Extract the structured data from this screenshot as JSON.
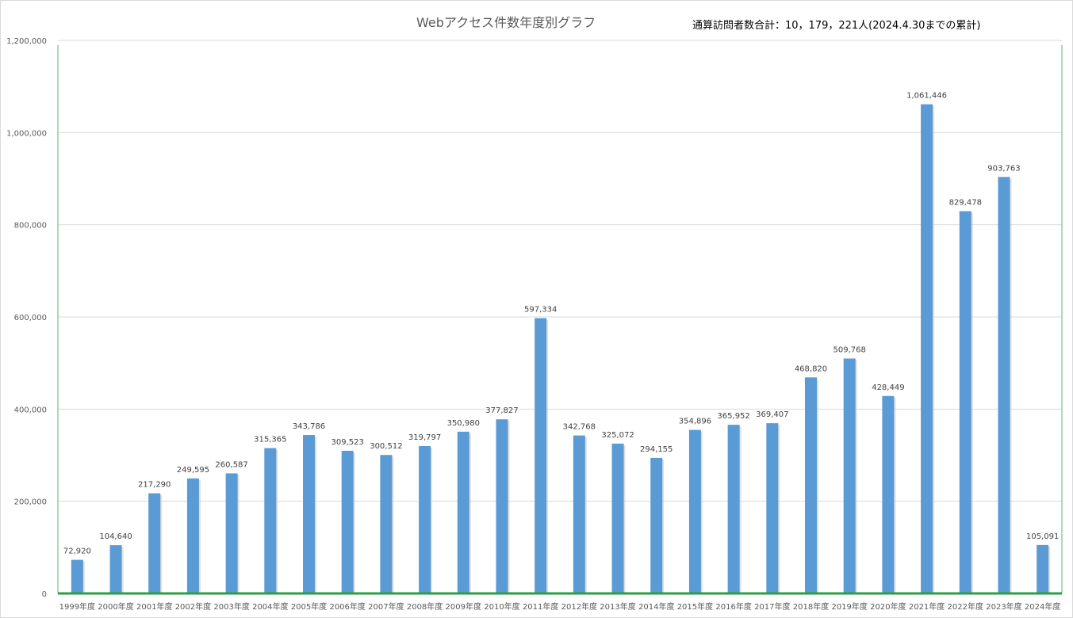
{
  "title": "Webアクセス件数年度別グラフ",
  "subtitle": "通算訪問者数合計：10，179，221人(2024.4.30までの累計)",
  "chart_data": {
    "type": "bar",
    "title": "Webアクセス件数年度別グラフ",
    "xlabel": "",
    "ylabel": "",
    "ylim": [
      0,
      1200000
    ],
    "yticks": [
      0,
      200000,
      400000,
      600000,
      800000,
      1000000,
      1200000
    ],
    "ytick_labels": [
      "0",
      "200,000",
      "400,000",
      "600,000",
      "800,000",
      "1,000,000",
      "1,200,000"
    ],
    "grid": true,
    "legend": "none",
    "bar_color": "#5b9bd5",
    "axis_color": "#2e9e45",
    "categories": [
      "1999年度",
      "2000年度",
      "2001年度",
      "2002年度",
      "2003年度",
      "2004年度",
      "2005年度",
      "2006年度",
      "2007年度",
      "2008年度",
      "2009年度",
      "2010年度",
      "2011年度",
      "2012年度",
      "2013年度",
      "2014年度",
      "2015年度",
      "2016年度",
      "2017年度",
      "2018年度",
      "2019年度",
      "2020年度",
      "2021年度",
      "2022年度",
      "2023年度",
      "2024年度"
    ],
    "values": [
      72920,
      104640,
      217290,
      249595,
      260587,
      315365,
      343786,
      309523,
      300512,
      319797,
      350980,
      377827,
      597334,
      342768,
      325072,
      294155,
      354896,
      365952,
      369407,
      468820,
      509768,
      428449,
      1061446,
      829478,
      903763,
      105091
    ],
    "value_labels": [
      "72,920",
      "104,640",
      "217,290",
      "249,595",
      "260,587",
      "315,365",
      "343,786",
      "309,523",
      "300,512",
      "319,797",
      "350,980",
      "377,827",
      "597,334",
      "342,768",
      "325,072",
      "294,155",
      "354,896",
      "365,952",
      "369,407",
      "468,820",
      "509,768",
      "428,449",
      "1,061,446",
      "829,478",
      "903,763",
      "105,091"
    ]
  }
}
